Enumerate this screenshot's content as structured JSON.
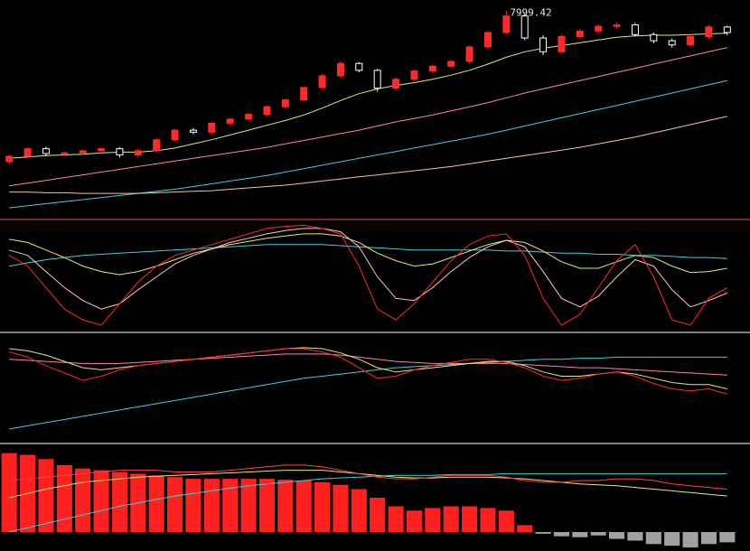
{
  "chart_data": [
    {
      "type": "candlestick",
      "high_label": "7999.42",
      "ylim": [
        5000,
        8100
      ],
      "up_color": "#ff2a2a",
      "down_color": "#ffffff",
      "open": [
        5800,
        5880,
        5990,
        5920,
        5930,
        5960,
        5990,
        5900,
        5960,
        6120,
        6260,
        6230,
        6360,
        6420,
        6490,
        6600,
        6700,
        6880,
        7050,
        7230,
        7130,
        6870,
        7000,
        7120,
        7190,
        7260,
        7470,
        7680,
        7920,
        7600,
        7400,
        7620,
        7700,
        7770,
        7790,
        7650,
        7560,
        7500,
        7620,
        7760
      ],
      "high": [
        5900,
        6010,
        6020,
        5950,
        5980,
        6000,
        6010,
        5990,
        6150,
        6280,
        6290,
        6380,
        6440,
        6510,
        6620,
        6720,
        6900,
        7080,
        7260,
        7250,
        7150,
        7030,
        7140,
        7210,
        7280,
        7490,
        7700,
        7999.42,
        7950,
        7640,
        7650,
        7730,
        7800,
        7820,
        7820,
        7680,
        7590,
        7650,
        7790,
        7780
      ],
      "low": [
        5760,
        5850,
        5880,
        5880,
        5900,
        5930,
        5860,
        5870,
        5930,
        6090,
        6200,
        6200,
        6330,
        6400,
        6460,
        6570,
        6680,
        6850,
        7020,
        7100,
        6820,
        6840,
        6970,
        7090,
        7160,
        7230,
        7440,
        7650,
        7570,
        7350,
        7370,
        7590,
        7670,
        7740,
        7620,
        7520,
        7460,
        7470,
        7590,
        7640
      ],
      "close": [
        5880,
        5990,
        5920,
        5930,
        5960,
        5990,
        5900,
        5960,
        6120,
        6260,
        6230,
        6360,
        6420,
        6490,
        6600,
        6700,
        6880,
        7050,
        7230,
        7130,
        6870,
        7000,
        7120,
        7190,
        7260,
        7470,
        7680,
        7920,
        7600,
        7400,
        7620,
        7700,
        7770,
        7790,
        7650,
        7560,
        7500,
        7620,
        7760,
        7680
      ],
      "series": [
        {
          "color": "#e8e86a",
          "values": [
            5850,
            5870,
            5890,
            5900,
            5910,
            5930,
            5940,
            5940,
            5960,
            6000,
            6060,
            6120,
            6190,
            6260,
            6330,
            6400,
            6480,
            6580,
            6690,
            6790,
            6860,
            6910,
            6950,
            7000,
            7060,
            7130,
            7220,
            7320,
            7400,
            7450,
            7490,
            7530,
            7570,
            7610,
            7630,
            7640,
            7640,
            7650,
            7660,
            7670
          ]
        },
        {
          "color": "#ff80b0",
          "values": [
            5450,
            5490,
            5530,
            5570,
            5610,
            5650,
            5690,
            5730,
            5770,
            5810,
            5850,
            5890,
            5930,
            5970,
            6010,
            6060,
            6110,
            6160,
            6210,
            6260,
            6320,
            6380,
            6430,
            6480,
            6540,
            6600,
            6660,
            6730,
            6800,
            6860,
            6920,
            6980,
            7040,
            7100,
            7160,
            7220,
            7280,
            7340,
            7400,
            7460
          ]
        },
        {
          "color": "#40d0e0",
          "values": [
            5130,
            5160,
            5190,
            5220,
            5250,
            5280,
            5310,
            5340,
            5370,
            5400,
            5440,
            5480,
            5520,
            5560,
            5600,
            5650,
            5700,
            5750,
            5800,
            5850,
            5900,
            5950,
            6000,
            6050,
            6100,
            6150,
            6200,
            6260,
            6320,
            6380,
            6440,
            6500,
            6560,
            6620,
            6680,
            6740,
            6800,
            6860,
            6920,
            6980
          ]
        },
        {
          "color": "#f0c8a0",
          "values": [
            5360,
            5360,
            5350,
            5350,
            5340,
            5340,
            5340,
            5340,
            5350,
            5360,
            5370,
            5380,
            5400,
            5420,
            5440,
            5460,
            5490,
            5520,
            5550,
            5580,
            5610,
            5640,
            5670,
            5700,
            5730,
            5770,
            5810,
            5850,
            5890,
            5930,
            5970,
            6010,
            6060,
            6110,
            6160,
            6220,
            6280,
            6340,
            6400,
            6460
          ]
        }
      ]
    },
    {
      "type": "line",
      "ylim": [
        0,
        100
      ],
      "series": [
        {
          "color": "#40d0e0",
          "values": [
            60,
            63,
            66,
            68,
            70,
            71,
            72,
            73,
            74,
            75,
            76,
            77,
            78,
            79,
            80,
            80,
            80,
            80,
            79,
            78,
            77,
            76,
            75,
            75,
            75,
            75,
            75,
            74,
            74,
            73,
            72,
            72,
            71,
            71,
            70,
            70,
            69,
            68,
            68,
            67
          ]
        },
        {
          "color": "#e8e86a",
          "values": [
            85,
            82,
            75,
            68,
            60,
            55,
            52,
            55,
            60,
            66,
            72,
            76,
            80,
            83,
            86,
            88,
            90,
            90,
            88,
            82,
            72,
            65,
            60,
            62,
            68,
            74,
            80,
            84,
            82,
            74,
            64,
            58,
            58,
            64,
            70,
            68,
            60,
            54,
            55,
            58
          ]
        },
        {
          "color": "#ffc0d0",
          "values": [
            75,
            70,
            55,
            40,
            28,
            20,
            25,
            38,
            50,
            62,
            70,
            76,
            82,
            86,
            90,
            93,
            95,
            95,
            92,
            78,
            50,
            30,
            28,
            40,
            55,
            68,
            78,
            84,
            78,
            55,
            30,
            22,
            32,
            50,
            66,
            60,
            38,
            22,
            28,
            35
          ]
        },
        {
          "color": "#ff2a2a",
          "values": [
            70,
            60,
            40,
            20,
            10,
            5,
            25,
            45,
            60,
            70,
            75,
            80,
            85,
            90,
            95,
            97,
            98,
            95,
            90,
            60,
            20,
            10,
            25,
            45,
            65,
            80,
            88,
            90,
            70,
            30,
            5,
            15,
            40,
            65,
            80,
            50,
            10,
            5,
            30,
            40
          ]
        }
      ]
    },
    {
      "type": "line",
      "ylim": [
        0,
        100
      ],
      "series": [
        {
          "color": "#40d0e0",
          "values": [
            12,
            15,
            18,
            21,
            24,
            27,
            30,
            33,
            36,
            39,
            42,
            45,
            48,
            51,
            54,
            57,
            60,
            62,
            64,
            66,
            68,
            70,
            71,
            72,
            73,
            74,
            75,
            76,
            77,
            78,
            78,
            79,
            79,
            80,
            80,
            80,
            80,
            80,
            80,
            80
          ]
        },
        {
          "color": "#ff80b0",
          "values": [
            78,
            77,
            76,
            75,
            74,
            74,
            74,
            75,
            76,
            77,
            78,
            79,
            80,
            81,
            82,
            83,
            83,
            83,
            82,
            80,
            78,
            76,
            75,
            74,
            74,
            74,
            74,
            74,
            73,
            72,
            71,
            70,
            70,
            69,
            68,
            67,
            66,
            65,
            64,
            63
          ]
        },
        {
          "color": "#e8e86a",
          "values": [
            88,
            86,
            82,
            76,
            70,
            68,
            70,
            72,
            74,
            76,
            78,
            80,
            82,
            84,
            86,
            88,
            89,
            88,
            84,
            78,
            70,
            66,
            68,
            70,
            72,
            74,
            76,
            76,
            72,
            66,
            62,
            62,
            64,
            66,
            64,
            60,
            56,
            54,
            54,
            50
          ]
        },
        {
          "color": "#ff2a2a",
          "values": [
            85,
            80,
            72,
            65,
            58,
            62,
            68,
            72,
            74,
            76,
            78,
            80,
            82,
            84,
            86,
            88,
            88,
            85,
            80,
            70,
            60,
            62,
            68,
            72,
            75,
            78,
            78,
            75,
            70,
            62,
            58,
            60,
            64,
            66,
            62,
            55,
            50,
            48,
            50,
            45
          ]
        }
      ]
    },
    {
      "type": "bar",
      "ylim": [
        -20,
        100
      ],
      "color": "#ff2020",
      "negative_color": "#a0a0a0",
      "values": [
        92,
        90,
        85,
        78,
        74,
        72,
        70,
        68,
        66,
        64,
        62,
        62,
        62,
        62,
        62,
        61,
        60,
        58,
        55,
        50,
        40,
        30,
        25,
        28,
        30,
        30,
        28,
        25,
        8,
        -2,
        -5,
        -6,
        -4,
        -8,
        -10,
        -14,
        -16,
        -18,
        -14,
        -12
      ],
      "series": [
        {
          "color": "#40d0e0",
          "values": [
            0,
            5,
            10,
            15,
            20,
            25,
            30,
            34,
            38,
            42,
            45,
            48,
            51,
            54,
            56,
            58,
            60,
            62,
            63,
            64,
            65,
            66,
            66,
            66,
            67,
            67,
            67,
            68,
            68,
            68,
            68,
            68,
            68,
            68,
            68,
            68,
            68,
            68,
            68,
            68
          ]
        },
        {
          "color": "#e8e86a",
          "values": [
            40,
            45,
            50,
            54,
            58,
            60,
            62,
            64,
            65,
            66,
            67,
            68,
            69,
            70,
            71,
            72,
            72,
            72,
            70,
            68,
            66,
            64,
            63,
            63,
            64,
            64,
            64,
            63,
            62,
            60,
            58,
            56,
            55,
            54,
            52,
            50,
            48,
            46,
            44,
            42
          ]
        },
        {
          "color": "#ff4040",
          "values": [
            60,
            62,
            64,
            66,
            68,
            70,
            72,
            72,
            72,
            70,
            70,
            70,
            72,
            74,
            76,
            78,
            78,
            76,
            72,
            68,
            64,
            62,
            62,
            64,
            66,
            66,
            66,
            64,
            60,
            58,
            58,
            60,
            60,
            62,
            62,
            60,
            56,
            54,
            52,
            50
          ]
        }
      ]
    }
  ]
}
